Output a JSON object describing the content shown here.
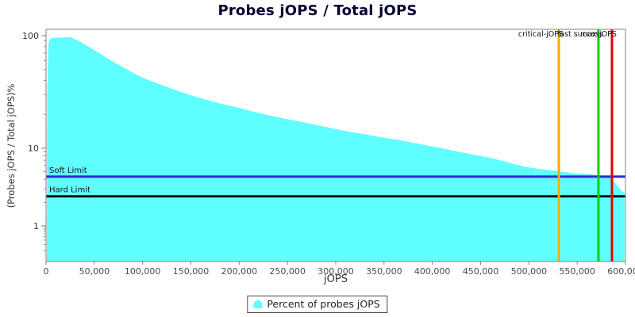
{
  "chart_data": {
    "type": "area",
    "title": "Probes jOPS / Total jOPS",
    "xlabel": "jOPS",
    "ylabel": "(Probes jOPS / Total jOPS)%",
    "y_scale": "log",
    "grid": false,
    "legend_position": "bottom",
    "xlim": [
      0,
      600000
    ],
    "x_ticks": [
      0,
      50000,
      100000,
      150000,
      200000,
      250000,
      300000,
      350000,
      400000,
      450000,
      500000,
      550000,
      600000
    ],
    "y_ticks": [
      100,
      10,
      1
    ],
    "y_minor_ticks": [
      90,
      80,
      70,
      60,
      50,
      40,
      30,
      20,
      9,
      8,
      7,
      6,
      5,
      4,
      3,
      2,
      0.9,
      0.8,
      0.7,
      0.6,
      0.5,
      0.4,
      0.3,
      0.2
    ],
    "series": [
      {
        "name": "Percent of probes jOPS",
        "color": "#5FFFFF",
        "points": [
          [
            800,
            0.1
          ],
          [
            1200,
            30
          ],
          [
            2500,
            85
          ],
          [
            4000,
            93
          ],
          [
            5000,
            95
          ],
          [
            10000,
            96
          ],
          [
            26000,
            96.8
          ],
          [
            35000,
            89
          ],
          [
            51000,
            73.5
          ],
          [
            67000,
            60.5
          ],
          [
            84000,
            50
          ],
          [
            100000,
            42.3
          ],
          [
            117000,
            37.2
          ],
          [
            133000,
            33.1
          ],
          [
            150000,
            29.6
          ],
          [
            166000,
            26.9
          ],
          [
            182000,
            24.8
          ],
          [
            199000,
            22.9
          ],
          [
            215000,
            21.1
          ],
          [
            232000,
            19.5
          ],
          [
            248000,
            18.2
          ],
          [
            265000,
            17.1
          ],
          [
            281000,
            16.0
          ],
          [
            298000,
            14.9
          ],
          [
            314000,
            14.0
          ],
          [
            330000,
            13.3
          ],
          [
            347000,
            12.5
          ],
          [
            363000,
            11.9
          ],
          [
            380000,
            11.2
          ],
          [
            396000,
            10.5
          ],
          [
            413000,
            9.8
          ],
          [
            429000,
            8.9
          ],
          [
            446000,
            8.1
          ],
          [
            462000,
            7.4
          ],
          [
            478000,
            6.6
          ],
          [
            495000,
            5.8
          ],
          [
            511000,
            5.4
          ],
          [
            528000,
            5.1
          ],
          [
            544000,
            4.8
          ],
          [
            561000,
            4.6
          ],
          [
            573000,
            4.5
          ],
          [
            585000,
            4.3
          ],
          [
            587000,
            3.9
          ],
          [
            589000,
            3.6
          ],
          [
            592000,
            3.2
          ],
          [
            594000,
            3.0
          ],
          [
            597000,
            2.75
          ],
          [
            599000,
            2.7
          ]
        ]
      }
    ],
    "h_markers": [
      {
        "label": "Soft Limit",
        "value": 4.3,
        "color": "#2B2BD6"
      },
      {
        "label": "Hard Limit",
        "value": 2.4,
        "color": "#0A140A"
      }
    ],
    "v_markers": [
      {
        "label": "critical-jOPS",
        "value": 531000,
        "color": "#FFAA00"
      },
      {
        "label": "last success",
        "value": 572000,
        "color": "#00D400"
      },
      {
        "label": "max-jOPS",
        "value": 586000,
        "color": "#E60000"
      }
    ]
  },
  "legend": {
    "items": [
      {
        "label": "Percent of probes jOPS",
        "color": "#5FFFFF"
      }
    ]
  }
}
